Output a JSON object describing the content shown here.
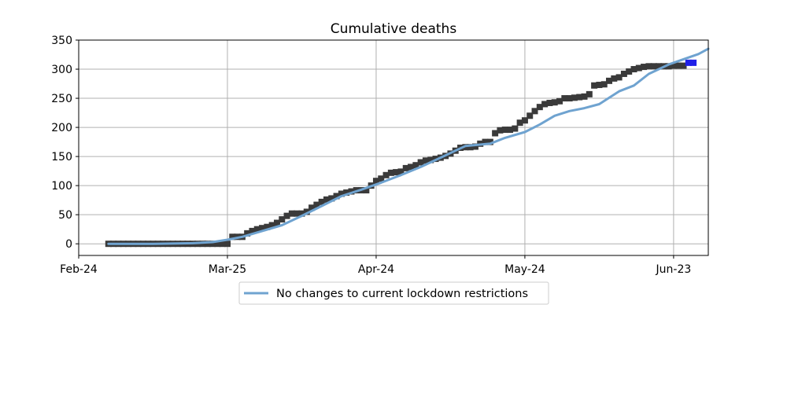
{
  "chart_data": {
    "type": "line",
    "title": "Cumulative deaths",
    "xlabel": "",
    "ylabel": "",
    "x_type": "date",
    "xlim": [
      "2020-02-24",
      "2020-06-30"
    ],
    "ylim": [
      -20,
      350
    ],
    "x_ticks": [
      {
        "date": "2020-02-24",
        "label": "Feb-24"
      },
      {
        "date": "2020-03-25",
        "label": "Mar-25"
      },
      {
        "date": "2020-04-24",
        "label": "Apr-24"
      },
      {
        "date": "2020-05-24",
        "label": "May-24"
      },
      {
        "date": "2020-06-23",
        "label": "Jun-23"
      }
    ],
    "y_ticks": [
      0,
      50,
      100,
      150,
      200,
      250,
      300,
      350
    ],
    "grid": true,
    "legend": {
      "placement": "below-center",
      "entries": [
        "No changes to current lockdown restrictions"
      ]
    },
    "colors": {
      "model_line": "#6fa3d0",
      "observed_marker": "#3a3a3a",
      "recent_marker": "#1f1fe8"
    },
    "series": [
      {
        "name": "No changes to current lockdown restrictions",
        "kind": "line",
        "points": [
          [
            "2020-03-01",
            0
          ],
          [
            "2020-03-10",
            0
          ],
          [
            "2020-03-18",
            1
          ],
          [
            "2020-03-22",
            3
          ],
          [
            "2020-03-25",
            7
          ],
          [
            "2020-03-28",
            12
          ],
          [
            "2020-04-01",
            22
          ],
          [
            "2020-04-05",
            32
          ],
          [
            "2020-04-09",
            48
          ],
          [
            "2020-04-13",
            65
          ],
          [
            "2020-04-17",
            82
          ],
          [
            "2020-04-21",
            93
          ],
          [
            "2020-04-25",
            105
          ],
          [
            "2020-04-29",
            118
          ],
          [
            "2020-05-03",
            132
          ],
          [
            "2020-05-07",
            148
          ],
          [
            "2020-05-10",
            160
          ],
          [
            "2020-05-12",
            168
          ],
          [
            "2020-05-17",
            172
          ],
          [
            "2020-05-20",
            182
          ],
          [
            "2020-05-24",
            192
          ],
          [
            "2020-05-27",
            205
          ],
          [
            "2020-05-30",
            220
          ],
          [
            "2020-06-02",
            228
          ],
          [
            "2020-06-05",
            233
          ],
          [
            "2020-06-08",
            240
          ],
          [
            "2020-06-12",
            262
          ],
          [
            "2020-06-15",
            272
          ],
          [
            "2020-06-18",
            292
          ],
          [
            "2020-06-22",
            308
          ],
          [
            "2020-06-26",
            320
          ],
          [
            "2020-06-28",
            326
          ],
          [
            "2020-06-30",
            335
          ]
        ]
      },
      {
        "name": "",
        "kind": "markers",
        "points": [
          [
            "2020-03-01",
            0
          ],
          [
            "2020-03-02",
            0
          ],
          [
            "2020-03-03",
            0
          ],
          [
            "2020-03-04",
            0
          ],
          [
            "2020-03-05",
            0
          ],
          [
            "2020-03-06",
            0
          ],
          [
            "2020-03-07",
            0
          ],
          [
            "2020-03-08",
            0
          ],
          [
            "2020-03-09",
            0
          ],
          [
            "2020-03-10",
            0
          ],
          [
            "2020-03-11",
            0
          ],
          [
            "2020-03-12",
            0
          ],
          [
            "2020-03-13",
            0
          ],
          [
            "2020-03-14",
            0
          ],
          [
            "2020-03-15",
            0
          ],
          [
            "2020-03-16",
            0
          ],
          [
            "2020-03-17",
            0
          ],
          [
            "2020-03-18",
            0
          ],
          [
            "2020-03-19",
            0
          ],
          [
            "2020-03-20",
            0
          ],
          [
            "2020-03-21",
            0
          ],
          [
            "2020-03-22",
            0
          ],
          [
            "2020-03-23",
            0
          ],
          [
            "2020-03-24",
            0
          ],
          [
            "2020-03-25",
            0
          ],
          [
            "2020-03-26",
            12
          ],
          [
            "2020-03-27",
            12
          ],
          [
            "2020-03-28",
            12
          ],
          [
            "2020-03-29",
            18
          ],
          [
            "2020-03-30",
            22
          ],
          [
            "2020-03-31",
            25
          ],
          [
            "2020-04-01",
            27
          ],
          [
            "2020-04-02",
            29
          ],
          [
            "2020-04-03",
            32
          ],
          [
            "2020-04-04",
            36
          ],
          [
            "2020-04-05",
            42
          ],
          [
            "2020-04-06",
            48
          ],
          [
            "2020-04-07",
            52
          ],
          [
            "2020-04-08",
            52
          ],
          [
            "2020-04-09",
            52
          ],
          [
            "2020-04-10",
            55
          ],
          [
            "2020-04-11",
            62
          ],
          [
            "2020-04-12",
            67
          ],
          [
            "2020-04-13",
            72
          ],
          [
            "2020-04-14",
            76
          ],
          [
            "2020-04-15",
            78
          ],
          [
            "2020-04-16",
            82
          ],
          [
            "2020-04-17",
            86
          ],
          [
            "2020-04-18",
            88
          ],
          [
            "2020-04-19",
            90
          ],
          [
            "2020-04-20",
            92
          ],
          [
            "2020-04-21",
            92
          ],
          [
            "2020-04-22",
            92
          ],
          [
            "2020-04-23",
            100
          ],
          [
            "2020-04-24",
            108
          ],
          [
            "2020-04-25",
            112
          ],
          [
            "2020-04-26",
            118
          ],
          [
            "2020-04-27",
            122
          ],
          [
            "2020-04-28",
            123
          ],
          [
            "2020-04-29",
            124
          ],
          [
            "2020-04-30",
            130
          ],
          [
            "2020-05-01",
            132
          ],
          [
            "2020-05-02",
            135
          ],
          [
            "2020-05-03",
            140
          ],
          [
            "2020-05-04",
            143
          ],
          [
            "2020-05-05",
            144
          ],
          [
            "2020-05-06",
            146
          ],
          [
            "2020-05-07",
            148
          ],
          [
            "2020-05-08",
            151
          ],
          [
            "2020-05-09",
            155
          ],
          [
            "2020-05-10",
            160
          ],
          [
            "2020-05-11",
            165
          ],
          [
            "2020-05-12",
            166
          ],
          [
            "2020-05-13",
            166
          ],
          [
            "2020-05-14",
            167
          ],
          [
            "2020-05-15",
            172
          ],
          [
            "2020-05-16",
            175
          ],
          [
            "2020-05-17",
            175
          ],
          [
            "2020-05-18",
            190
          ],
          [
            "2020-05-19",
            195
          ],
          [
            "2020-05-20",
            196
          ],
          [
            "2020-05-21",
            196
          ],
          [
            "2020-05-22",
            198
          ],
          [
            "2020-05-23",
            208
          ],
          [
            "2020-05-24",
            212
          ],
          [
            "2020-05-25",
            220
          ],
          [
            "2020-05-26",
            228
          ],
          [
            "2020-05-27",
            235
          ],
          [
            "2020-05-28",
            240
          ],
          [
            "2020-05-29",
            242
          ],
          [
            "2020-05-30",
            243
          ],
          [
            "2020-05-31",
            245
          ],
          [
            "2020-06-01",
            250
          ],
          [
            "2020-06-02",
            250
          ],
          [
            "2020-06-03",
            251
          ],
          [
            "2020-06-04",
            252
          ],
          [
            "2020-06-05",
            253
          ],
          [
            "2020-06-06",
            257
          ],
          [
            "2020-06-07",
            272
          ],
          [
            "2020-06-08",
            273
          ],
          [
            "2020-06-09",
            274
          ],
          [
            "2020-06-10",
            280
          ],
          [
            "2020-06-11",
            284
          ],
          [
            "2020-06-12",
            286
          ],
          [
            "2020-06-13",
            292
          ],
          [
            "2020-06-14",
            296
          ],
          [
            "2020-06-15",
            300
          ],
          [
            "2020-06-16",
            302
          ],
          [
            "2020-06-17",
            304
          ],
          [
            "2020-06-18",
            305
          ],
          [
            "2020-06-19",
            305
          ],
          [
            "2020-06-20",
            305
          ],
          [
            "2020-06-21",
            305
          ],
          [
            "2020-06-22",
            305
          ],
          [
            "2020-06-23",
            306
          ],
          [
            "2020-06-24",
            306
          ],
          [
            "2020-06-25",
            306
          ]
        ]
      },
      {
        "name": "",
        "kind": "markers",
        "points": [
          [
            "2020-06-26",
            311
          ],
          [
            "2020-06-27",
            311
          ]
        ]
      }
    ]
  }
}
